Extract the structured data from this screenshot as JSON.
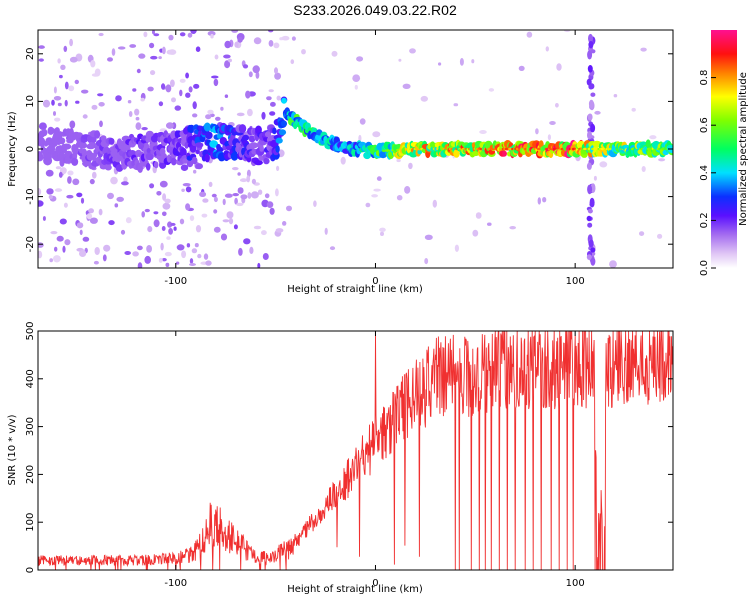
{
  "title": "S233.2026.049.03.22.R02",
  "chart_data": [
    {
      "type": "heatmap",
      "title": "S233.2026.049.03.22.R02",
      "xlabel": "Height of straight line (km)",
      "ylabel": "Frequency (Hz)",
      "xlim": [
        -169,
        149
      ],
      "ylim": [
        -25,
        25
      ],
      "xticks": [
        -100,
        0,
        100
      ],
      "yticks": [
        -20,
        -10,
        0,
        10,
        20
      ],
      "colorbar": {
        "label": "Normalized spectral amplitude",
        "ticks": [
          0.0,
          0.2,
          0.4,
          0.6,
          0.8
        ],
        "range": [
          0,
          1
        ]
      },
      "ridge": {
        "x": [
          -169,
          -150,
          -120,
          -100,
          -80,
          -60,
          -50,
          -45,
          -40,
          -35,
          -30,
          -20,
          -10,
          0,
          20,
          40,
          60,
          80,
          100,
          110,
          149
        ],
        "frequency": [
          1,
          0,
          -1,
          0.5,
          1.5,
          0.5,
          1,
          8,
          6,
          4,
          3,
          1,
          0,
          -0.5,
          0,
          0,
          0,
          0,
          0,
          0,
          0
        ],
        "amplitude": [
          0.1,
          0.15,
          0.2,
          0.2,
          0.35,
          0.2,
          0.25,
          0.45,
          0.55,
          0.5,
          0.45,
          0.4,
          0.45,
          0.55,
          0.75,
          0.8,
          0.85,
          0.85,
          0.9,
          0.7,
          0.6
        ]
      },
      "spike_x": 108
    },
    {
      "type": "line",
      "xlabel": "Height of straight line (km)",
      "ylabel": "SNR (10 * v/v)",
      "xlim": [
        -169,
        149
      ],
      "ylim": [
        0,
        500
      ],
      "xticks": [
        -100,
        0,
        100
      ],
      "yticks": [
        0,
        100,
        200,
        300,
        400,
        500
      ],
      "color": "#f03030",
      "envelope": {
        "x": [
          -169,
          -120,
          -100,
          -90,
          -80,
          -70,
          -60,
          -50,
          -40,
          -30,
          -20,
          -10,
          0,
          10,
          20,
          30,
          40,
          50,
          60,
          70,
          80,
          90,
          100,
          110,
          120,
          149
        ],
        "y": [
          20,
          20,
          25,
          40,
          110,
          60,
          25,
          30,
          55,
          110,
          160,
          210,
          270,
          320,
          360,
          400,
          405,
          410,
          420,
          425,
          430,
          430,
          435,
          430,
          435,
          440
        ]
      },
      "dropouts_x": [
        40,
        42,
        48,
        52,
        55,
        58,
        62,
        66,
        70,
        75,
        79,
        83,
        88,
        92,
        96,
        99
      ],
      "gap_x": [
        110,
        115
      ],
      "spike": {
        "x": 0,
        "y": 500
      }
    }
  ]
}
